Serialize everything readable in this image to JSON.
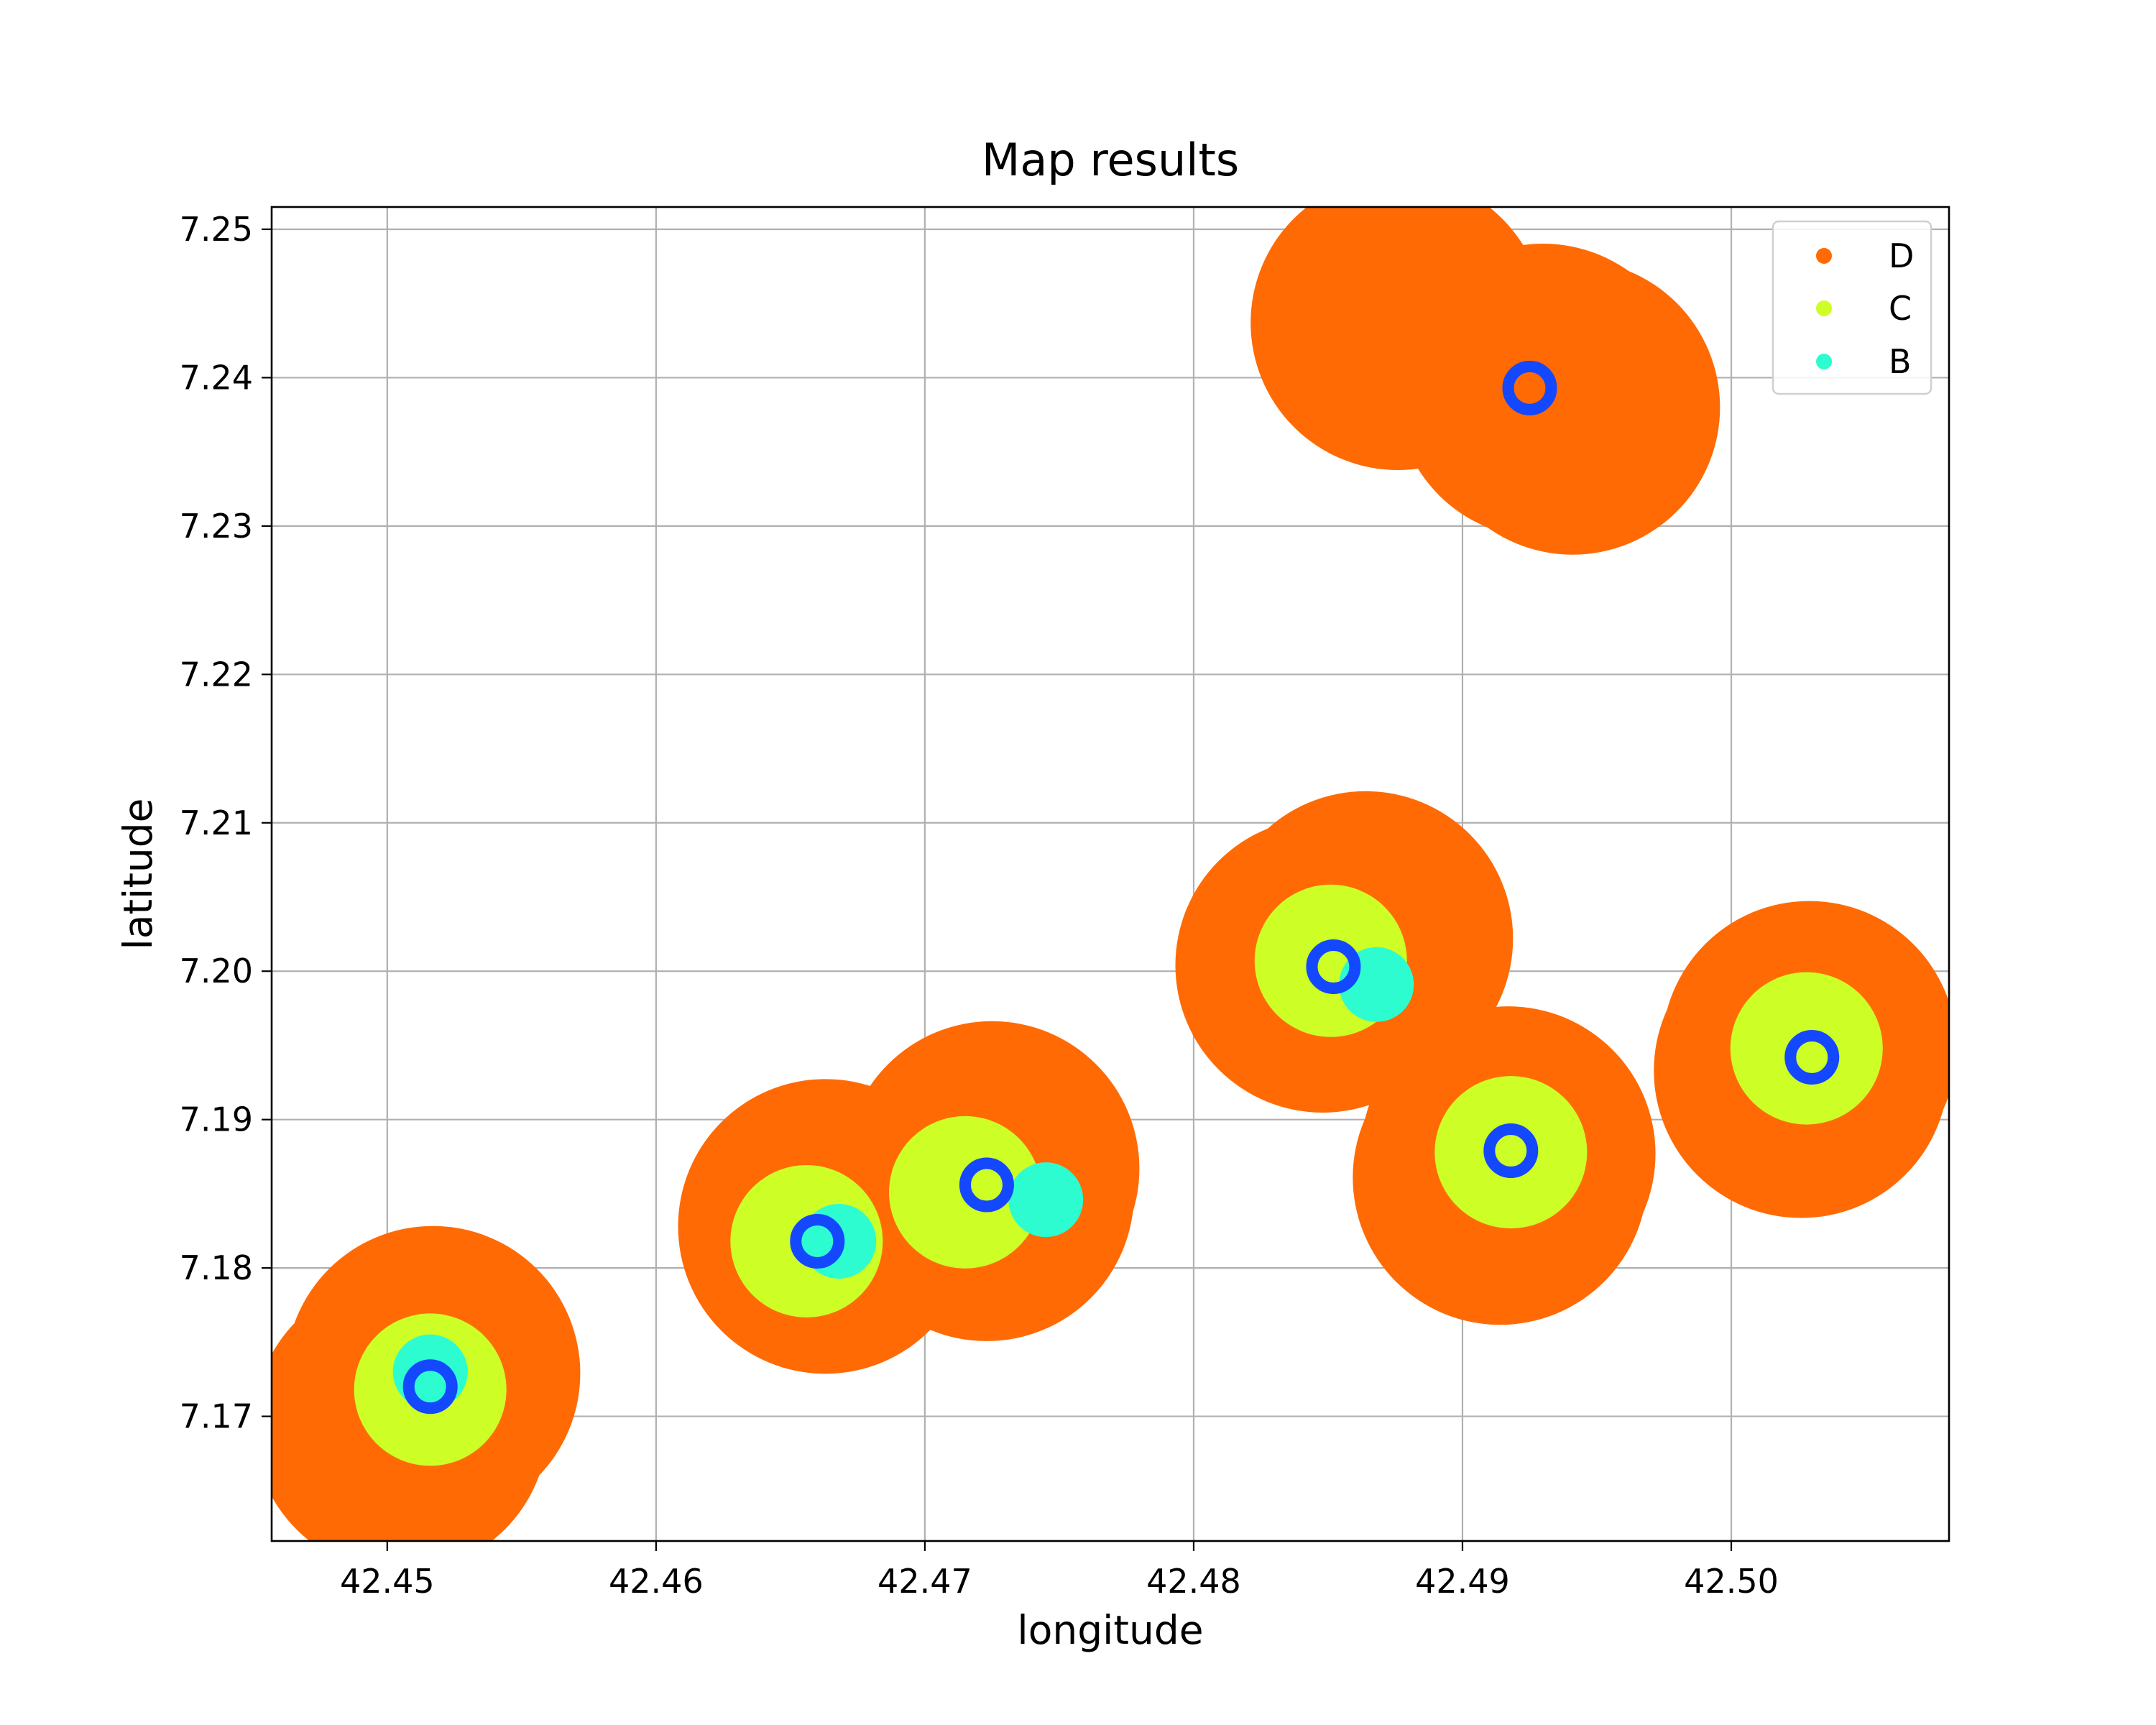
{
  "chart_data": {
    "type": "scatter",
    "title": "Map results",
    "xlabel": "longitude",
    "ylabel": "latitude",
    "xlim": [
      42.4457,
      42.5081
    ],
    "ylim": [
      7.1616,
      7.2515
    ],
    "xticks": [
      42.45,
      42.46,
      42.47,
      42.48,
      42.49,
      42.5
    ],
    "xtick_labels": [
      "42.45",
      "42.46",
      "42.47",
      "42.48",
      "42.49",
      "42.50"
    ],
    "yticks": [
      7.17,
      7.18,
      7.19,
      7.2,
      7.21,
      7.22,
      7.23,
      7.24,
      7.25
    ],
    "ytick_labels": [
      "7.17",
      "7.18",
      "7.19",
      "7.20",
      "7.21",
      "7.22",
      "7.23",
      "7.24",
      "7.25"
    ],
    "grid": true,
    "legend_position": "top-right",
    "colors": {
      "D": "#ff6a04",
      "C": "#cdfe26",
      "B": "#2dfcd0",
      "marker": "#1448ff",
      "grid": "#b0b0b0",
      "axes": "#000000"
    },
    "series": [
      {
        "name": "D",
        "points": [
          {
            "x": 42.4517,
            "y": 7.1729
          },
          {
            "x": 42.4505,
            "y": 7.1694
          },
          {
            "x": 42.4663,
            "y": 7.1828
          },
          {
            "x": 42.4725,
            "y": 7.1867
          },
          {
            "x": 42.4723,
            "y": 7.185
          },
          {
            "x": 42.4864,
            "y": 7.2022
          },
          {
            "x": 42.4848,
            "y": 7.2004
          },
          {
            "x": 42.4917,
            "y": 7.1877
          },
          {
            "x": 42.4914,
            "y": 7.1861
          },
          {
            "x": 42.5029,
            "y": 7.1948
          },
          {
            "x": 42.5026,
            "y": 7.1933
          },
          {
            "x": 42.4876,
            "y": 7.2437
          },
          {
            "x": 42.493,
            "y": 7.2391
          },
          {
            "x": 42.4941,
            "y": 7.238
          }
        ]
      },
      {
        "name": "C",
        "points": [
          {
            "x": 42.4516,
            "y": 7.1718
          },
          {
            "x": 42.4656,
            "y": 7.1818
          },
          {
            "x": 42.4715,
            "y": 7.1851
          },
          {
            "x": 42.4851,
            "y": 7.2007
          },
          {
            "x": 42.4918,
            "y": 7.1878
          },
          {
            "x": 42.5028,
            "y": 7.1948
          }
        ]
      },
      {
        "name": "B",
        "points": [
          {
            "x": 42.4516,
            "y": 7.173
          },
          {
            "x": 42.4668,
            "y": 7.1818
          },
          {
            "x": 42.4745,
            "y": 7.1846
          },
          {
            "x": 42.4868,
            "y": 7.1991
          }
        ]
      }
    ],
    "markers": [
      {
        "x": 42.4516,
        "y": 7.172
      },
      {
        "x": 42.466,
        "y": 7.1818
      },
      {
        "x": 42.4723,
        "y": 7.1856
      },
      {
        "x": 42.4852,
        "y": 7.2003
      },
      {
        "x": 42.4918,
        "y": 7.1879
      },
      {
        "x": 42.503,
        "y": 7.1942
      },
      {
        "x": 42.4925,
        "y": 7.2393
      }
    ]
  }
}
